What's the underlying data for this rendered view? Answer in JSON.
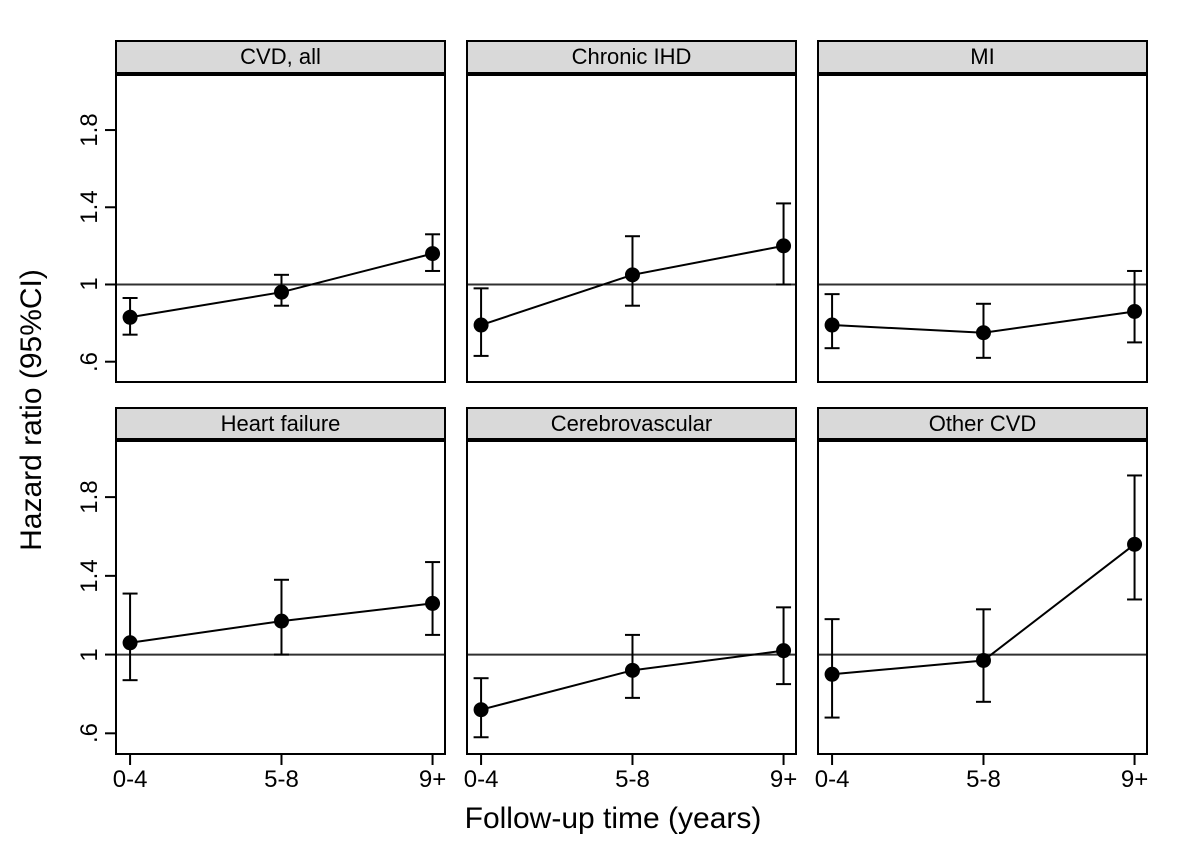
{
  "chart_data": {
    "type": "line",
    "layout": {
      "grid": "2 rows x 3 columns small multiples",
      "legend": "none",
      "gridlines": false,
      "reference_line_y": 1.0,
      "ylim": [
        0.5,
        2.08
      ],
      "panel_header_bg": "#d9d9d9",
      "border_color": "#000000",
      "line_color": "#000000",
      "marker_color": "#000000",
      "reference_line_color": "#303030"
    },
    "xlabel": "Follow-up time (years)",
    "ylabel": "Hazard ratio (95%CI)",
    "categories": [
      "0-4",
      "5-8",
      "9+"
    ],
    "y_tick_labels": [
      ".6",
      "1",
      "1.4",
      "1.8"
    ],
    "y_tick_values": [
      0.6,
      1.0,
      1.4,
      1.8
    ],
    "panels": [
      {
        "title": "CVD, all",
        "estimates": [
          0.83,
          0.96,
          1.16
        ],
        "ci_low": [
          0.74,
          0.89,
          1.07
        ],
        "ci_high": [
          0.93,
          1.05,
          1.26
        ]
      },
      {
        "title": "Chronic IHD",
        "estimates": [
          0.79,
          1.05,
          1.2
        ],
        "ci_low": [
          0.63,
          0.89,
          1.0
        ],
        "ci_high": [
          0.98,
          1.25,
          1.42
        ]
      },
      {
        "title": "MI",
        "estimates": [
          0.79,
          0.75,
          0.86
        ],
        "ci_low": [
          0.67,
          0.62,
          0.7
        ],
        "ci_high": [
          0.95,
          0.9,
          1.07
        ]
      },
      {
        "title": "Heart failure",
        "estimates": [
          1.06,
          1.17,
          1.26
        ],
        "ci_low": [
          0.87,
          1.0,
          1.1
        ],
        "ci_high": [
          1.31,
          1.38,
          1.47
        ]
      },
      {
        "title": "Cerebrovascular",
        "estimates": [
          0.72,
          0.92,
          1.02
        ],
        "ci_low": [
          0.58,
          0.78,
          0.85
        ],
        "ci_high": [
          0.88,
          1.1,
          1.24
        ]
      },
      {
        "title": "Other CVD",
        "estimates": [
          0.9,
          0.97,
          1.56
        ],
        "ci_low": [
          0.68,
          0.76,
          1.28
        ],
        "ci_high": [
          1.18,
          1.23,
          1.91
        ]
      }
    ]
  }
}
